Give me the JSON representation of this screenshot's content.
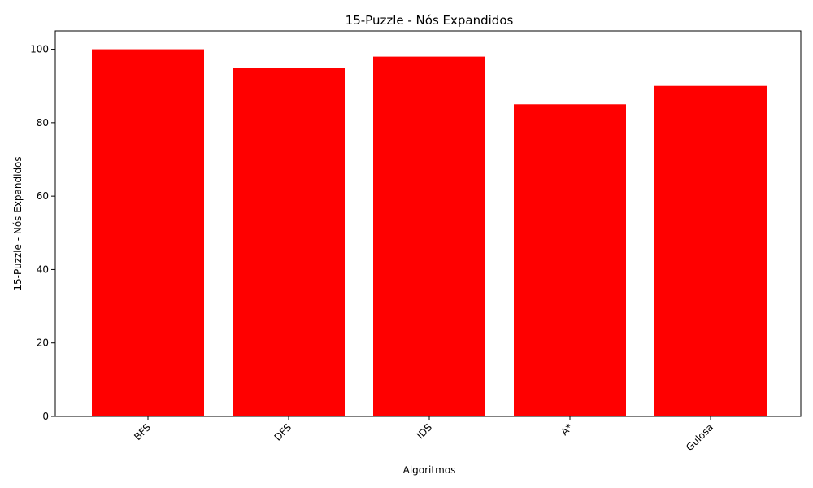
{
  "chart_data": {
    "type": "bar",
    "title": "15-Puzzle - Nós Expandidos",
    "xlabel": "Algoritmos",
    "ylabel": "15-Puzzle - Nós Expandidos",
    "categories": [
      "BFS",
      "DFS",
      "IDS",
      "A*",
      "Gulosa"
    ],
    "values": [
      100,
      95,
      98,
      85,
      90
    ],
    "ylim": [
      0,
      105
    ],
    "yticks": [
      0,
      20,
      40,
      60,
      80,
      100
    ],
    "bar_color": "#ff0000",
    "grid": false,
    "legend": "none"
  }
}
